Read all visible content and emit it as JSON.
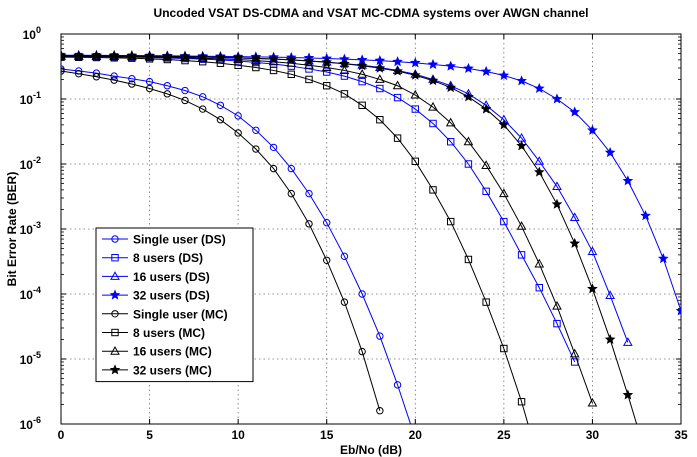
{
  "chart_data": {
    "type": "line",
    "title": "Uncoded VSAT DS-CDMA and VSAT MC-CDMA systems over AWGN channel",
    "xlabel": "Eb/No (dB)",
    "ylabel": "Bit Error Rate (BER)",
    "xlim": [
      0,
      35
    ],
    "ylim": [
      1e-06,
      1
    ],
    "yscale": "log",
    "grid": true,
    "legend_position": "lower-left",
    "x_ticks": [
      "0",
      "5",
      "10",
      "15",
      "20",
      "25",
      "30",
      "35"
    ],
    "y_ticks": [
      {
        "base": "10",
        "exp": "0"
      },
      {
        "base": "10",
        "exp": "-1"
      },
      {
        "base": "10",
        "exp": "-2"
      },
      {
        "base": "10",
        "exp": "-3"
      },
      {
        "base": "10",
        "exp": "-4"
      },
      {
        "base": "10",
        "exp": "-5"
      },
      {
        "base": "10",
        "exp": "-6"
      }
    ],
    "series": [
      {
        "name": "Single user (DS)",
        "color": "#0000ff",
        "marker": "circle",
        "x": [
          0,
          1,
          2,
          3,
          4,
          5,
          6,
          7,
          8,
          9,
          10,
          11,
          12,
          13,
          14,
          15,
          16,
          17,
          18,
          19,
          20
        ],
        "y": [
          0.29,
          0.27,
          0.25,
          0.225,
          0.205,
          0.185,
          0.16,
          0.135,
          0.108,
          0.08,
          0.055,
          0.033,
          0.018,
          0.0085,
          0.0035,
          0.00125,
          0.00038,
          0.0001,
          2.25e-05,
          4e-06,
          6e-07
        ]
      },
      {
        "name": "8 users (DS)",
        "color": "#0000ff",
        "marker": "square",
        "x": [
          0,
          1,
          2,
          3,
          4,
          5,
          6,
          7,
          8,
          9,
          10,
          11,
          12,
          13,
          14,
          15,
          16,
          17,
          18,
          19,
          20,
          21,
          22,
          23,
          24,
          25,
          26,
          27,
          28,
          29
        ],
        "y": [
          0.45,
          0.45,
          0.448,
          0.445,
          0.44,
          0.435,
          0.428,
          0.42,
          0.41,
          0.4,
          0.385,
          0.365,
          0.345,
          0.32,
          0.29,
          0.26,
          0.225,
          0.185,
          0.145,
          0.105,
          0.07,
          0.042,
          0.022,
          0.01,
          0.0038,
          0.0013,
          0.0004,
          0.000125,
          3.5e-05,
          9e-06
        ]
      },
      {
        "name": "16 users (DS)",
        "color": "#0000ff",
        "marker": "triangle",
        "x": [
          0,
          1,
          2,
          3,
          4,
          5,
          6,
          7,
          8,
          9,
          10,
          11,
          12,
          13,
          14,
          15,
          16,
          17,
          18,
          19,
          20,
          21,
          22,
          23,
          24,
          25,
          26,
          27,
          28,
          29,
          30,
          31,
          32
        ],
        "y": [
          0.46,
          0.46,
          0.458,
          0.456,
          0.455,
          0.452,
          0.45,
          0.445,
          0.44,
          0.435,
          0.428,
          0.42,
          0.41,
          0.4,
          0.385,
          0.37,
          0.35,
          0.33,
          0.305,
          0.275,
          0.24,
          0.2,
          0.16,
          0.12,
          0.08,
          0.048,
          0.025,
          0.011,
          0.0045,
          0.0015,
          0.00045,
          9.5e-05,
          1.8e-05
        ]
      },
      {
        "name": "32 users (DS)",
        "color": "#0000ff",
        "marker": "star",
        "x": [
          0,
          1,
          2,
          3,
          4,
          5,
          6,
          7,
          8,
          9,
          10,
          11,
          12,
          13,
          14,
          15,
          16,
          17,
          18,
          19,
          20,
          21,
          22,
          23,
          24,
          25,
          26,
          27,
          28,
          29,
          30,
          31,
          32,
          33,
          34,
          35
        ],
        "y": [
          0.47,
          0.47,
          0.469,
          0.468,
          0.466,
          0.464,
          0.462,
          0.458,
          0.455,
          0.452,
          0.448,
          0.445,
          0.44,
          0.435,
          0.428,
          0.42,
          0.41,
          0.4,
          0.39,
          0.375,
          0.36,
          0.34,
          0.32,
          0.295,
          0.265,
          0.23,
          0.19,
          0.145,
          0.1,
          0.063,
          0.033,
          0.015,
          0.0055,
          0.0016,
          0.00035,
          5.5e-05
        ]
      },
      {
        "name": "Single user (MC)",
        "color": "#000000",
        "marker": "circle",
        "x": [
          0,
          1,
          2,
          3,
          4,
          5,
          6,
          7,
          8,
          9,
          10,
          11,
          12,
          13,
          14,
          15,
          16,
          17,
          18
        ],
        "y": [
          0.27,
          0.245,
          0.22,
          0.195,
          0.17,
          0.145,
          0.12,
          0.095,
          0.07,
          0.048,
          0.03,
          0.017,
          0.0085,
          0.0035,
          0.0012,
          0.00033,
          7.5e-05,
          1.3e-05,
          1.6e-06
        ]
      },
      {
        "name": "8 users (MC)",
        "color": "#000000",
        "marker": "square",
        "x": [
          0,
          1,
          2,
          3,
          4,
          5,
          6,
          7,
          8,
          9,
          10,
          11,
          12,
          13,
          14,
          15,
          16,
          17,
          18,
          19,
          20,
          21,
          22,
          23,
          24,
          25,
          26,
          27
        ],
        "y": [
          0.44,
          0.438,
          0.435,
          0.43,
          0.425,
          0.415,
          0.405,
          0.39,
          0.375,
          0.355,
          0.33,
          0.305,
          0.275,
          0.24,
          0.2,
          0.16,
          0.12,
          0.08,
          0.048,
          0.025,
          0.011,
          0.004,
          0.0013,
          0.00034,
          7.5e-05,
          1.45e-05,
          2.2e-06,
          2.5e-07
        ]
      },
      {
        "name": "16 users (MC)",
        "color": "#000000",
        "marker": "triangle",
        "x": [
          0,
          1,
          2,
          3,
          4,
          5,
          6,
          7,
          8,
          9,
          10,
          11,
          12,
          13,
          14,
          15,
          16,
          17,
          18,
          19,
          20,
          21,
          22,
          23,
          24,
          25,
          26,
          27,
          28,
          29,
          30
        ],
        "y": [
          0.455,
          0.454,
          0.452,
          0.45,
          0.447,
          0.443,
          0.438,
          0.432,
          0.424,
          0.415,
          0.405,
          0.39,
          0.375,
          0.355,
          0.33,
          0.305,
          0.275,
          0.24,
          0.2,
          0.16,
          0.115,
          0.075,
          0.043,
          0.022,
          0.0095,
          0.0035,
          0.0011,
          0.00029,
          6.5e-05,
          1.2e-05,
          2.1e-06
        ]
      },
      {
        "name": "32 users (MC)",
        "color": "#000000",
        "marker": "star",
        "x": [
          0,
          1,
          2,
          3,
          4,
          5,
          6,
          7,
          8,
          9,
          10,
          11,
          12,
          13,
          14,
          15,
          16,
          17,
          18,
          19,
          20,
          21,
          22,
          23,
          24,
          25,
          26,
          27,
          28,
          29,
          30,
          31,
          32,
          33
        ],
        "y": [
          0.465,
          0.464,
          0.463,
          0.461,
          0.459,
          0.456,
          0.453,
          0.449,
          0.444,
          0.438,
          0.43,
          0.422,
          0.412,
          0.4,
          0.385,
          0.368,
          0.348,
          0.325,
          0.298,
          0.268,
          0.232,
          0.192,
          0.15,
          0.108,
          0.07,
          0.04,
          0.019,
          0.0075,
          0.0024,
          0.0006,
          0.00012,
          2e-05,
          2.8e-06,
          3.5e-07
        ]
      }
    ]
  }
}
